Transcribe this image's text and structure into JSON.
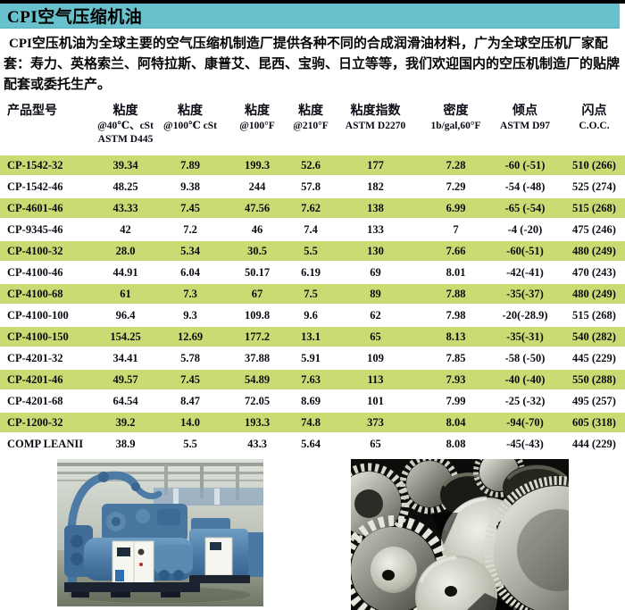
{
  "page": {
    "title": "CPI空气压缩机油"
  },
  "intro": "CPI空压机油为全球主要的空气压缩机制造厂提供各种不同的合成润滑油材料，广为全球空压机厂家配套：寿力、英格索兰、阿特拉斯、康普艾、昆西、宝驹、日立等等，我们欢迎国内的空压机制造厂的贴牌配套或委托生产。",
  "table": {
    "column_keys": [
      "model",
      "v40",
      "v100c",
      "v100f",
      "v210f",
      "vi",
      "density",
      "pour",
      "flash"
    ],
    "headers": [
      {
        "line1": "产品型号",
        "line2": "",
        "line3": ""
      },
      {
        "line1": "粘度",
        "line2": "@40℃、cSt",
        "line3": "ASTM D445"
      },
      {
        "line1": "粘度",
        "line2": "@100℃ cSt",
        "line3": ""
      },
      {
        "line1": "粘度",
        "line2": "@100°F",
        "line3": ""
      },
      {
        "line1": "粘度",
        "line2": "@210°F",
        "line3": ""
      },
      {
        "line1": "粘度指数",
        "line2": "ASTM D2270",
        "line3": ""
      },
      {
        "line1": "密度",
        "line2": "1b/gal,60°F",
        "line3": ""
      },
      {
        "line1": "倾点",
        "line2": "ASTM D97",
        "line3": ""
      },
      {
        "line1": "闪点",
        "line2": "C.O.C.",
        "line3": ""
      }
    ],
    "rows": [
      {
        "model": "CP-1542-32",
        "v40": "39.34",
        "v100c": "7.89",
        "v100f": "199.3",
        "v210f": "52.6",
        "vi": "177",
        "density": "7.28",
        "pour": "-60 (-51)",
        "flash": "510 (266)",
        "highlight": true
      },
      {
        "model": "CP-1542-46",
        "v40": "48.25",
        "v100c": "9.38",
        "v100f": "244",
        "v210f": "57.8",
        "vi": "182",
        "density": "7.29",
        "pour": "-54 (-48)",
        "flash": "525 (274)",
        "highlight": false
      },
      {
        "model": "CP-4601-46",
        "v40": "43.33",
        "v100c": "7.45",
        "v100f": "47.56",
        "v210f": "7.62",
        "vi": "138",
        "density": "6.99",
        "pour": "-65 (-54)",
        "flash": "515 (268)",
        "highlight": true
      },
      {
        "model": "CP-9345-46",
        "v40": "42",
        "v100c": "7.2",
        "v100f": "46",
        "v210f": "7.4",
        "vi": "133",
        "density": "7",
        "pour": "-4 (-20)",
        "flash": "475 (246)",
        "highlight": false
      },
      {
        "model": "CP-4100-32",
        "v40": "28.0",
        "v100c": "5.34",
        "v100f": "30.5",
        "v210f": "5.5",
        "vi": "130",
        "density": "7.66",
        "pour": "-60(-51)",
        "flash": "480 (249)",
        "highlight": true
      },
      {
        "model": "CP-4100-46",
        "v40": "44.91",
        "v100c": "6.04",
        "v100f": "50.17",
        "v210f": "6.19",
        "vi": "69",
        "density": "8.01",
        "pour": "-42(-41)",
        "flash": "470 (243)",
        "highlight": false
      },
      {
        "model": "CP-4100-68",
        "v40": "61",
        "v100c": "7.3",
        "v100f": "67",
        "v210f": "7.5",
        "vi": "89",
        "density": "7.88",
        "pour": "-35(-37)",
        "flash": "480 (249)",
        "highlight": true
      },
      {
        "model": "CP-4100-100",
        "v40": "96.4",
        "v100c": "9.3",
        "v100f": "109.8",
        "v210f": "9.6",
        "vi": "62",
        "density": "7.98",
        "pour": "-20(-28.9)",
        "flash": "515 (268)",
        "highlight": false
      },
      {
        "model": "CP-4100-150",
        "v40": "154.25",
        "v100c": "12.69",
        "v100f": "177.2",
        "v210f": "13.1",
        "vi": "65",
        "density": "8.13",
        "pour": "-35(-31)",
        "flash": "540 (282)",
        "highlight": true
      },
      {
        "model": "CP-4201-32",
        "v40": "34.41",
        "v100c": "5.78",
        "v100f": "37.88",
        "v210f": "5.91",
        "vi": "109",
        "density": "7.85",
        "pour": "-58 (-50)",
        "flash": "445 (229)",
        "highlight": false
      },
      {
        "model": "CP-4201-46",
        "v40": "49.57",
        "v100c": "7.45",
        "v100f": "54.89",
        "v210f": "7.63",
        "vi": "113",
        "density": "7.93",
        "pour": "-40 (-40)",
        "flash": "550 (288)",
        "highlight": true
      },
      {
        "model": "CP-4201-68",
        "v40": "64.54",
        "v100c": "8.47",
        "v100f": "72.05",
        "v210f": "8.69",
        "vi": "101",
        "density": "7.99",
        "pour": "-25 (-32)",
        "flash": "495 (257)",
        "highlight": false
      },
      {
        "model": "CP-1200-32",
        "v40": "39.2",
        "v100c": "14.0",
        "v100f": "193.3",
        "v210f": "74.8",
        "vi": "373",
        "density": "8.04",
        "pour": "-94(-70)",
        "flash": "605 (318)",
        "highlight": true
      },
      {
        "model": "COMP LEANII",
        "v40": "38.9",
        "v100c": "5.5",
        "v100f": "43.3",
        "v210f": "5.64",
        "vi": "65",
        "density": "8.08",
        "pour": "-45(-43)",
        "flash": "444 (229)",
        "highlight": false
      }
    ]
  },
  "photos": {
    "left": "compressor-units-photo",
    "right": "gear-train-photo"
  },
  "colors": {
    "top_strip": "#000000",
    "title_bar_bg": "#69c1ce",
    "highlight_row_bg": "#c9dc73",
    "page_bg": "#ffffff",
    "text": "#050505"
  }
}
